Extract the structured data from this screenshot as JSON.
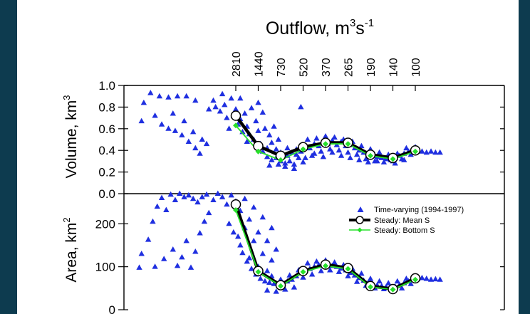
{
  "chart_data": [
    {
      "type": "scatter",
      "panel": "volume",
      "title": "Outflow, m3s-1",
      "title_parts": {
        "base": "Outflow, m",
        "sup1": "3",
        "mid": "s",
        "sup2": "-1"
      },
      "top_tick_labels": [
        "2810",
        "1440",
        "730",
        "520",
        "370",
        "265",
        "190",
        "140",
        "100"
      ],
      "ylabel_parts": {
        "base": "Volume, km",
        "sup": "3"
      },
      "ylim": [
        0.0,
        1.0
      ],
      "yticks": [
        "0.0",
        "0.2",
        "0.4",
        "0.6",
        "0.8",
        "1.0"
      ],
      "x_positions": [
        1,
        2,
        3,
        4,
        5,
        6,
        7,
        8,
        9
      ],
      "series": [
        {
          "name": "Steady: Mean S",
          "values": [
            0.72,
            0.44,
            0.35,
            0.43,
            0.47,
            0.47,
            0.36,
            0.33,
            0.4
          ]
        },
        {
          "name": "Steady: Bottom S",
          "values": [
            0.63,
            0.39,
            0.31,
            0.41,
            0.46,
            0.46,
            0.35,
            0.32,
            0.39
          ]
        }
      ],
      "scatter": {
        "name": "Time-varying (1994-1997)",
        "points": [
          [
            -3.2,
            0.67
          ],
          [
            -3.1,
            0.84
          ],
          [
            -2.8,
            0.93
          ],
          [
            -2.4,
            0.9
          ],
          [
            -2.0,
            0.89
          ],
          [
            -1.6,
            0.9
          ],
          [
            -1.2,
            0.9
          ],
          [
            -0.8,
            0.86
          ],
          [
            -2.6,
            0.72
          ],
          [
            -2.3,
            0.64
          ],
          [
            -2.0,
            0.6
          ],
          [
            -1.7,
            0.58
          ],
          [
            -1.4,
            0.54
          ],
          [
            -1.1,
            0.48
          ],
          [
            -0.8,
            0.42
          ],
          [
            -0.6,
            0.37
          ],
          [
            -1.8,
            0.74
          ],
          [
            -1.3,
            0.67
          ],
          [
            -0.9,
            0.57
          ],
          [
            -0.5,
            0.5
          ],
          [
            -0.3,
            0.46
          ],
          [
            -0.2,
            0.78
          ],
          [
            0.0,
            0.86
          ],
          [
            0.1,
            0.8
          ],
          [
            0.3,
            0.76
          ],
          [
            0.5,
            0.82
          ],
          [
            0.6,
            0.7
          ],
          [
            0.8,
            0.88
          ],
          [
            0.9,
            0.72
          ],
          [
            1.0,
            0.78
          ],
          [
            1.1,
            0.64
          ],
          [
            1.2,
            0.69
          ],
          [
            1.3,
            0.57
          ],
          [
            1.4,
            0.74
          ],
          [
            1.5,
            0.62
          ],
          [
            1.6,
            0.55
          ],
          [
            1.7,
            0.79
          ],
          [
            1.8,
            0.5
          ],
          [
            1.9,
            0.67
          ],
          [
            2.0,
            0.58
          ],
          [
            2.1,
            0.46
          ],
          [
            2.2,
            0.75
          ],
          [
            2.3,
            0.6
          ],
          [
            2.4,
            0.42
          ],
          [
            2.5,
            0.54
          ],
          [
            2.6,
            0.47
          ],
          [
            2.7,
            0.62
          ],
          [
            2.8,
            0.41
          ],
          [
            2.9,
            0.5
          ],
          [
            3.0,
            0.38
          ],
          [
            0.4,
            0.92
          ],
          [
            1.2,
            0.88
          ],
          [
            2.0,
            0.84
          ],
          [
            0.7,
            0.6
          ],
          [
            1.5,
            0.48
          ],
          [
            2.2,
            0.39
          ],
          [
            2.4,
            0.34
          ],
          [
            2.6,
            0.31
          ],
          [
            2.8,
            0.33
          ],
          [
            3.0,
            0.3
          ],
          [
            3.2,
            0.28
          ],
          [
            3.4,
            0.3
          ],
          [
            3.6,
            0.27
          ],
          [
            3.8,
            0.33
          ],
          [
            3.9,
            0.8
          ],
          [
            3.1,
            0.37
          ],
          [
            3.3,
            0.35
          ],
          [
            3.5,
            0.38
          ],
          [
            3.7,
            0.41
          ],
          [
            3.9,
            0.39
          ],
          [
            4.1,
            0.44
          ],
          [
            4.3,
            0.42
          ],
          [
            4.5,
            0.46
          ],
          [
            4.7,
            0.44
          ],
          [
            4.9,
            0.48
          ],
          [
            5.1,
            0.46
          ],
          [
            5.3,
            0.49
          ],
          [
            5.5,
            0.45
          ],
          [
            5.7,
            0.48
          ],
          [
            5.9,
            0.44
          ],
          [
            6.1,
            0.45
          ],
          [
            6.3,
            0.42
          ],
          [
            6.5,
            0.4
          ],
          [
            6.7,
            0.38
          ],
          [
            6.9,
            0.36
          ],
          [
            7.1,
            0.35
          ],
          [
            7.3,
            0.34
          ],
          [
            7.5,
            0.33
          ],
          [
            7.7,
            0.32
          ],
          [
            7.9,
            0.31
          ],
          [
            8.1,
            0.33
          ],
          [
            8.3,
            0.35
          ],
          [
            8.5,
            0.37
          ],
          [
            8.7,
            0.39
          ],
          [
            8.9,
            0.41
          ],
          [
            9.1,
            0.4
          ],
          [
            9.3,
            0.39
          ],
          [
            9.5,
            0.38
          ],
          [
            9.7,
            0.39
          ],
          [
            9.9,
            0.38
          ],
          [
            10.1,
            0.38
          ],
          [
            3.2,
            0.25
          ],
          [
            3.6,
            0.23
          ],
          [
            4.0,
            0.29
          ],
          [
            4.4,
            0.35
          ],
          [
            4.8,
            0.39
          ],
          [
            5.2,
            0.41
          ],
          [
            5.6,
            0.4
          ],
          [
            6.0,
            0.38
          ],
          [
            6.4,
            0.36
          ],
          [
            6.8,
            0.32
          ],
          [
            7.2,
            0.3
          ],
          [
            7.6,
            0.29
          ],
          [
            8.0,
            0.3
          ],
          [
            8.4,
            0.32
          ],
          [
            8.8,
            0.36
          ],
          [
            4.2,
            0.5
          ],
          [
            4.6,
            0.51
          ],
          [
            5.0,
            0.53
          ],
          [
            5.4,
            0.52
          ],
          [
            5.8,
            0.5
          ],
          [
            6.2,
            0.48
          ],
          [
            6.6,
            0.44
          ],
          [
            7.0,
            0.41
          ],
          [
            7.4,
            0.38
          ],
          [
            7.8,
            0.36
          ],
          [
            8.2,
            0.37
          ],
          [
            8.6,
            0.42
          ],
          [
            9.0,
            0.43
          ],
          [
            2.5,
            0.26
          ],
          [
            2.9,
            0.27
          ],
          [
            3.3,
            0.42
          ],
          [
            3.7,
            0.36
          ],
          [
            4.1,
            0.33
          ],
          [
            4.5,
            0.37
          ],
          [
            4.9,
            0.34
          ],
          [
            5.3,
            0.38
          ],
          [
            5.7,
            0.35
          ],
          [
            6.1,
            0.33
          ],
          [
            6.5,
            0.31
          ],
          [
            6.9,
            0.29
          ],
          [
            7.3,
            0.3
          ],
          [
            7.7,
            0.33
          ],
          [
            8.1,
            0.28
          ],
          [
            8.5,
            0.31
          ]
        ]
      }
    },
    {
      "type": "scatter",
      "panel": "area",
      "ylabel_parts": {
        "base": "Area, km",
        "sup": "2"
      },
      "ylim": [
        0,
        270
      ],
      "yticks": [
        "0",
        "100",
        "200"
      ],
      "x_positions": [
        1,
        2,
        3,
        4,
        5,
        6,
        7,
        8,
        9
      ],
      "series": [
        {
          "name": "Steady: Mean S",
          "values": [
            245,
            90,
            57,
            90,
            105,
            97,
            55,
            48,
            73
          ]
        },
        {
          "name": "Steady: Bottom S",
          "values": [
            232,
            88,
            55,
            88,
            102,
            95,
            53,
            47,
            70
          ]
        }
      ],
      "scatter": {
        "name": "Time-varying (1994-1997)",
        "points": [
          [
            -3.3,
            98
          ],
          [
            -3.2,
            130
          ],
          [
            -2.9,
            163
          ],
          [
            -2.7,
            205
          ],
          [
            -2.5,
            240
          ],
          [
            -2.3,
            260
          ],
          [
            -2.1,
            232
          ],
          [
            -1.9,
            268
          ],
          [
            -1.7,
            255
          ],
          [
            -1.5,
            270
          ],
          [
            -1.3,
            262
          ],
          [
            -1.1,
            266
          ],
          [
            -0.9,
            258
          ],
          [
            -0.7,
            250
          ],
          [
            -0.5,
            262
          ],
          [
            -0.3,
            268
          ],
          [
            -2.6,
            100
          ],
          [
            -2.2,
            118
          ],
          [
            -1.8,
            140
          ],
          [
            -1.6,
            102
          ],
          [
            -1.4,
            122
          ],
          [
            -1.2,
            160
          ],
          [
            -1.0,
            98
          ],
          [
            -0.8,
            135
          ],
          [
            -0.6,
            178
          ],
          [
            -0.4,
            205
          ],
          [
            -0.2,
            225
          ],
          [
            0.0,
            255
          ],
          [
            0.2,
            270
          ],
          [
            0.4,
            262
          ],
          [
            0.6,
            245
          ],
          [
            0.8,
            266
          ],
          [
            1.0,
            252
          ],
          [
            1.2,
            230
          ],
          [
            1.4,
            258
          ],
          [
            1.6,
            210
          ],
          [
            1.8,
            238
          ],
          [
            2.0,
            180
          ],
          [
            2.2,
            215
          ],
          [
            2.4,
            160
          ],
          [
            2.6,
            190
          ],
          [
            2.8,
            140
          ],
          [
            1.1,
            170
          ],
          [
            1.3,
            132
          ],
          [
            1.5,
            112
          ],
          [
            1.7,
            95
          ],
          [
            1.9,
            82
          ],
          [
            2.1,
            72
          ],
          [
            2.3,
            66
          ],
          [
            2.5,
            63
          ],
          [
            2.7,
            60
          ],
          [
            2.9,
            58
          ],
          [
            3.1,
            62
          ],
          [
            3.3,
            66
          ],
          [
            3.5,
            70
          ],
          [
            3.7,
            78
          ],
          [
            3.9,
            85
          ],
          [
            4.1,
            90
          ],
          [
            4.3,
            95
          ],
          [
            4.5,
            100
          ],
          [
            4.7,
            104
          ],
          [
            4.9,
            108
          ],
          [
            5.1,
            106
          ],
          [
            5.3,
            102
          ],
          [
            5.5,
            100
          ],
          [
            5.7,
            96
          ],
          [
            5.9,
            92
          ],
          [
            6.1,
            86
          ],
          [
            6.3,
            80
          ],
          [
            6.5,
            74
          ],
          [
            6.7,
            68
          ],
          [
            6.9,
            63
          ],
          [
            7.1,
            60
          ],
          [
            7.3,
            57
          ],
          [
            7.5,
            55
          ],
          [
            7.7,
            53
          ],
          [
            7.9,
            52
          ],
          [
            8.1,
            54
          ],
          [
            8.3,
            58
          ],
          [
            8.5,
            62
          ],
          [
            8.7,
            66
          ],
          [
            8.9,
            70
          ],
          [
            9.1,
            72
          ],
          [
            9.3,
            74
          ],
          [
            9.5,
            72
          ],
          [
            9.7,
            70
          ],
          [
            9.9,
            71
          ],
          [
            10.1,
            70
          ],
          [
            2.4,
            45
          ],
          [
            2.8,
            42
          ],
          [
            3.2,
            47
          ],
          [
            3.6,
            52
          ],
          [
            4.0,
            75
          ],
          [
            4.4,
            82
          ],
          [
            4.8,
            90
          ],
          [
            5.2,
            92
          ],
          [
            5.6,
            88
          ],
          [
            6.0,
            78
          ],
          [
            6.4,
            65
          ],
          [
            6.8,
            56
          ],
          [
            7.2,
            50
          ],
          [
            7.6,
            48
          ],
          [
            8.0,
            46
          ],
          [
            8.4,
            50
          ],
          [
            8.8,
            60
          ],
          [
            3.4,
            80
          ],
          [
            3.8,
            92
          ],
          [
            4.2,
            108
          ],
          [
            4.6,
            112
          ],
          [
            5.0,
            115
          ],
          [
            5.4,
            110
          ],
          [
            5.8,
            104
          ],
          [
            6.2,
            95
          ],
          [
            6.6,
            84
          ],
          [
            7.0,
            72
          ],
          [
            7.4,
            66
          ],
          [
            7.8,
            62
          ],
          [
            8.2,
            66
          ],
          [
            8.6,
            72
          ],
          [
            9.0,
            78
          ],
          [
            0.7,
            200
          ],
          [
            0.9,
            180
          ],
          [
            1.2,
            150
          ],
          [
            1.6,
            120
          ],
          [
            2.0,
            100
          ],
          [
            2.4,
            90
          ],
          [
            2.6,
            78
          ],
          [
            3.0,
            70
          ],
          [
            1.4,
            190
          ],
          [
            1.8,
            160
          ],
          [
            2.2,
            130
          ],
          [
            2.6,
            115
          ]
        ]
      },
      "legend": {
        "placement": "top-right",
        "entries": [
          "Time-varying (1994-1997)",
          "Steady: Mean S",
          "Steady: Bottom S"
        ]
      }
    }
  ],
  "colors": {
    "frame": "#0d3b4f",
    "scatter": "#1f2fe0",
    "mean_line": "#000000",
    "bottom_line": "#27e02a",
    "mean_marker_fill": "#ffffff"
  }
}
